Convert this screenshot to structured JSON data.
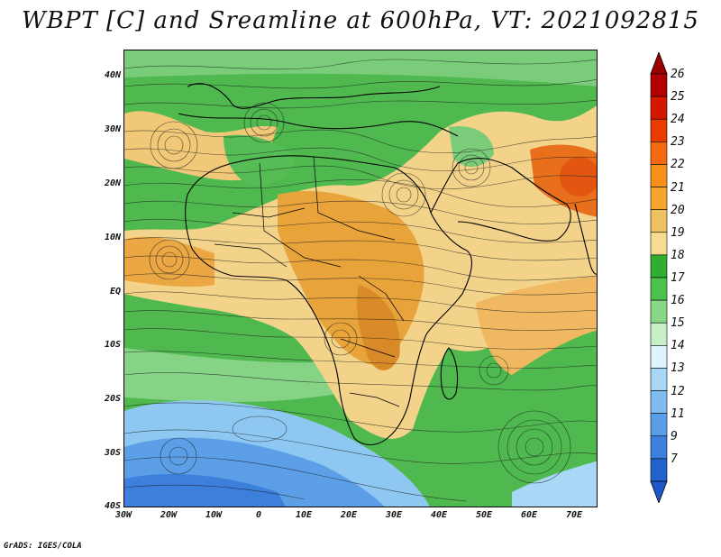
{
  "title": "WBPT [C] and Sreamline at 600hPa, VT: 2021092815",
  "credit": "GrADS: IGES/COLA",
  "map": {
    "lat_labels": [
      "40N",
      "30N",
      "20N",
      "10N",
      "EQ",
      "10S",
      "20S",
      "30S",
      "40S"
    ],
    "lon_labels": [
      "30W",
      "20W",
      "10W",
      "0",
      "10E",
      "20E",
      "30E",
      "40E",
      "50E",
      "60E",
      "70E"
    ]
  },
  "colorbar": {
    "labels": [
      "26",
      "25",
      "24",
      "23",
      "22",
      "21",
      "20",
      "19",
      "18",
      "17",
      "16",
      "15",
      "14",
      "13",
      "12",
      "11",
      "9",
      "7"
    ],
    "colors": [
      "#b00000",
      "#d41800",
      "#e83c00",
      "#f56a10",
      "#f88f18",
      "#f6a630",
      "#efc060",
      "#f6dc90",
      "#2fae2f",
      "#4cc24c",
      "#86d886",
      "#c8f0c8",
      "#dcf4fa",
      "#a8d8f6",
      "#80bcf0",
      "#5a9ee8",
      "#3c80dc",
      "#2262cc"
    ],
    "top_arrow_color": "#9a0000",
    "bottom_arrow_color": "#1e58c8"
  }
}
